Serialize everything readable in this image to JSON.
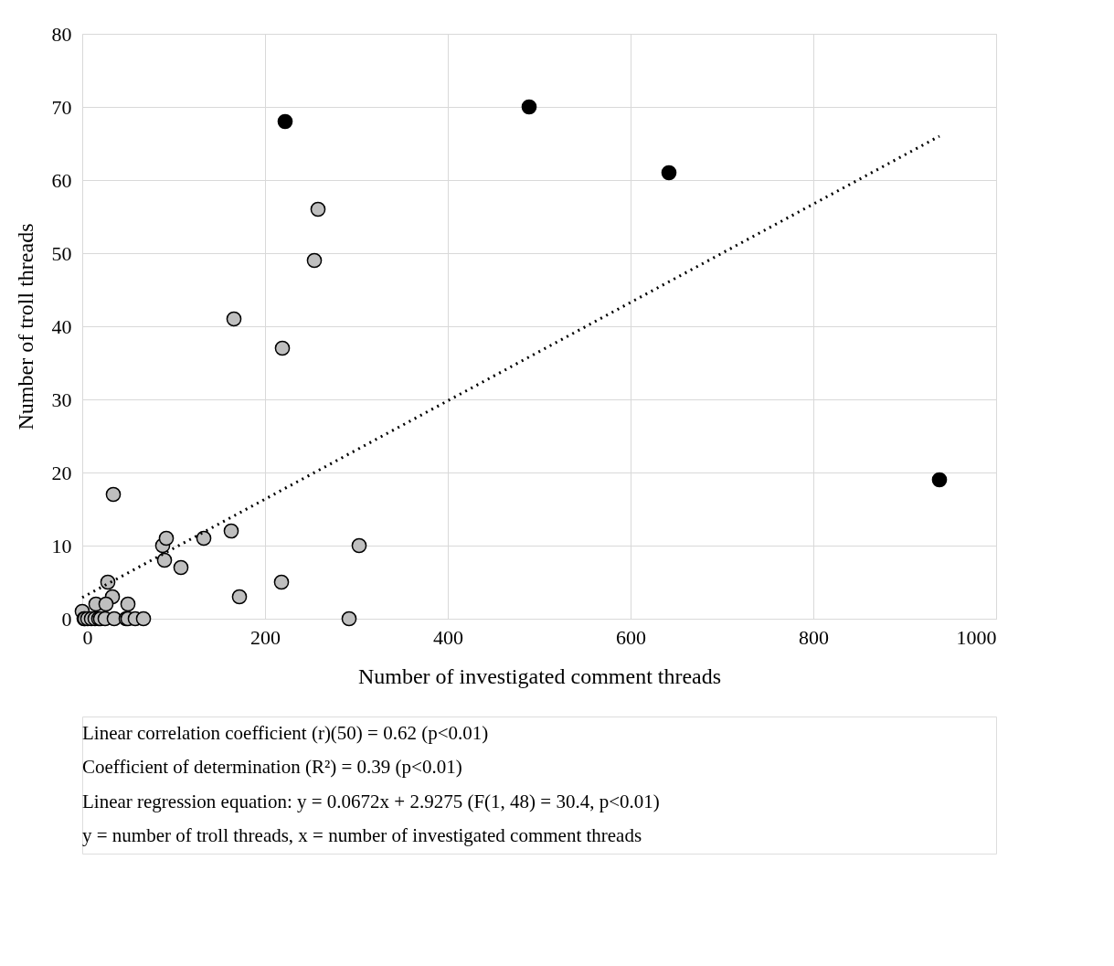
{
  "chart_data": {
    "type": "scatter",
    "xlabel": "Number of investigated comment threads",
    "ylabel": "Number of troll threads",
    "xlim": [
      0,
      1000
    ],
    "ylim": [
      0,
      80
    ],
    "xticks": [
      0,
      200,
      400,
      600,
      800,
      {
        "value": 1000,
        "label": "1000"
      }
    ],
    "yticks": [
      0,
      10,
      20,
      30,
      40,
      50,
      60,
      70,
      80
    ],
    "grid": true,
    "marker": "circle",
    "series": [
      {
        "color": "#bfbfbf",
        "x": [
          34,
          88,
          90,
          92,
          108,
          133,
          163,
          166,
          172,
          218,
          219,
          254,
          258,
          292,
          303,
          28,
          33,
          50,
          15,
          26,
          0,
          2,
          3,
          6,
          10,
          14,
          18,
          20,
          25,
          35,
          48,
          50,
          58,
          67
        ],
        "values": [
          17,
          10,
          8,
          11,
          7,
          11,
          12,
          41,
          3,
          5,
          37,
          49,
          56,
          0,
          10,
          5,
          3,
          2,
          2,
          2,
          1,
          0,
          0,
          0,
          0,
          0,
          0,
          0,
          0,
          0,
          0,
          0,
          0,
          0
        ]
      },
      {
        "color": "#000000",
        "x": [
          222,
          489,
          642,
          938
        ],
        "values": [
          68,
          70,
          61,
          19
        ]
      },
      {
        "type": "line",
        "color": "#000000",
        "line_style": "dotted",
        "marker": "none",
        "x": [
          0,
          938
        ],
        "values": [
          2.9,
          66
        ]
      }
    ],
    "annotations": [
      "Linear correlation coefficient (r)(50) = 0.62 (p<0.01)",
      "Coefficient of determination (R²) = 0.39 (p<0.01)",
      "Linear regression equation: y = 0.0672x + 2.9275 (F(1, 48) = 30.4, p<0.01)",
      "y = number of troll threads, x = number of investigated comment threads"
    ]
  }
}
